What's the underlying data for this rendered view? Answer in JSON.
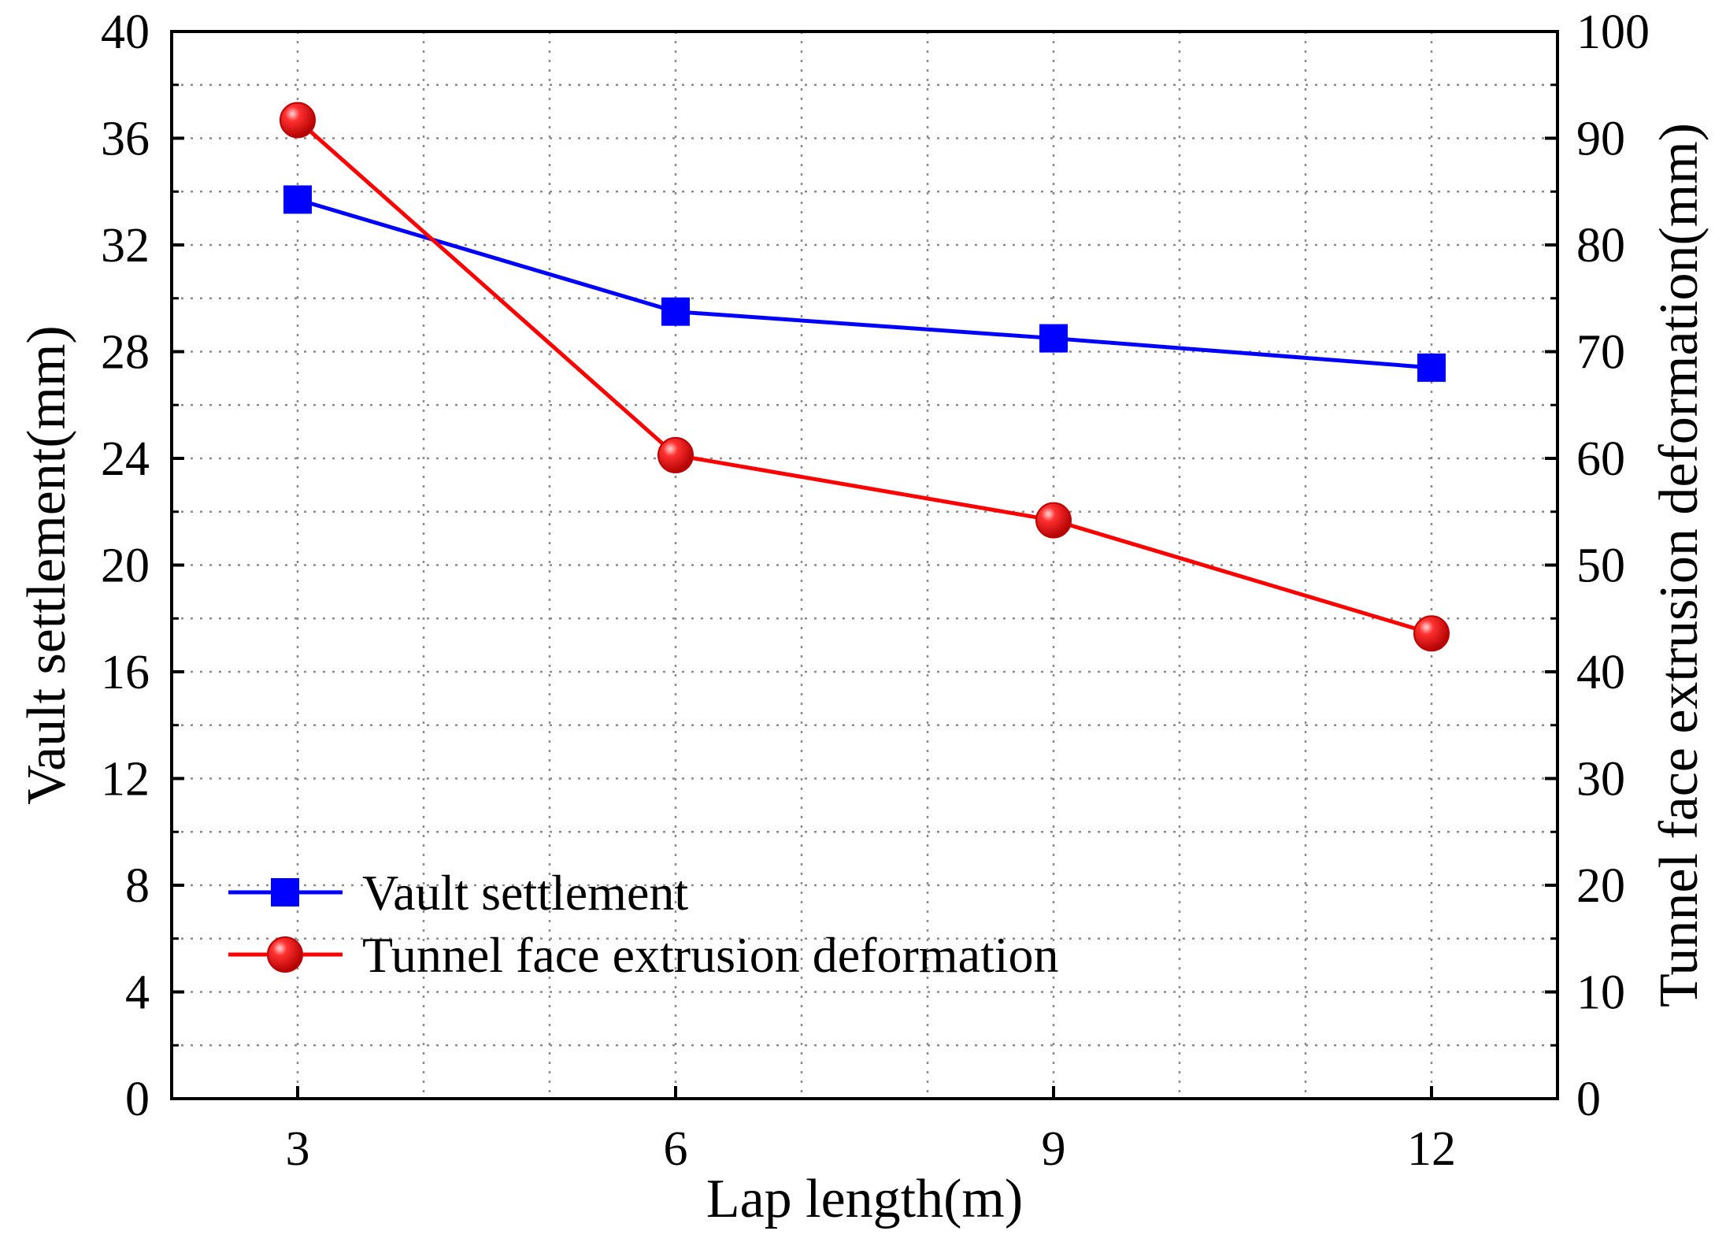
{
  "chart_data": {
    "type": "line",
    "title": "",
    "xlabel": "Lap length(m)",
    "ylabel": "Vault settlement(mm)",
    "ylabel_right": "Tunnel face extrusion deformation(mm)",
    "x": [
      3,
      6,
      9,
      12
    ],
    "xlim": [
      2,
      13
    ],
    "x_ticks": [
      3,
      6,
      9,
      12
    ],
    "ylim": [
      0,
      40
    ],
    "y_ticks": [
      0,
      4,
      8,
      12,
      16,
      20,
      24,
      28,
      32,
      36,
      40
    ],
    "ylim_right": [
      0,
      100
    ],
    "y_ticks_right": [
      0,
      10,
      20,
      30,
      40,
      50,
      60,
      70,
      80,
      90,
      100
    ],
    "grid": true,
    "legend_position": "bottom-left",
    "series": [
      {
        "name": "Vault settlement",
        "axis": "left",
        "marker": "square",
        "color": "#0000ff",
        "values": [
          33.7,
          29.5,
          28.5,
          27.4
        ]
      },
      {
        "name": "Tunnel face extrusion deformation",
        "axis": "right",
        "marker": "circle",
        "color": "#ff0000",
        "values": [
          91.7,
          60.3,
          54.2,
          43.6
        ]
      }
    ]
  }
}
